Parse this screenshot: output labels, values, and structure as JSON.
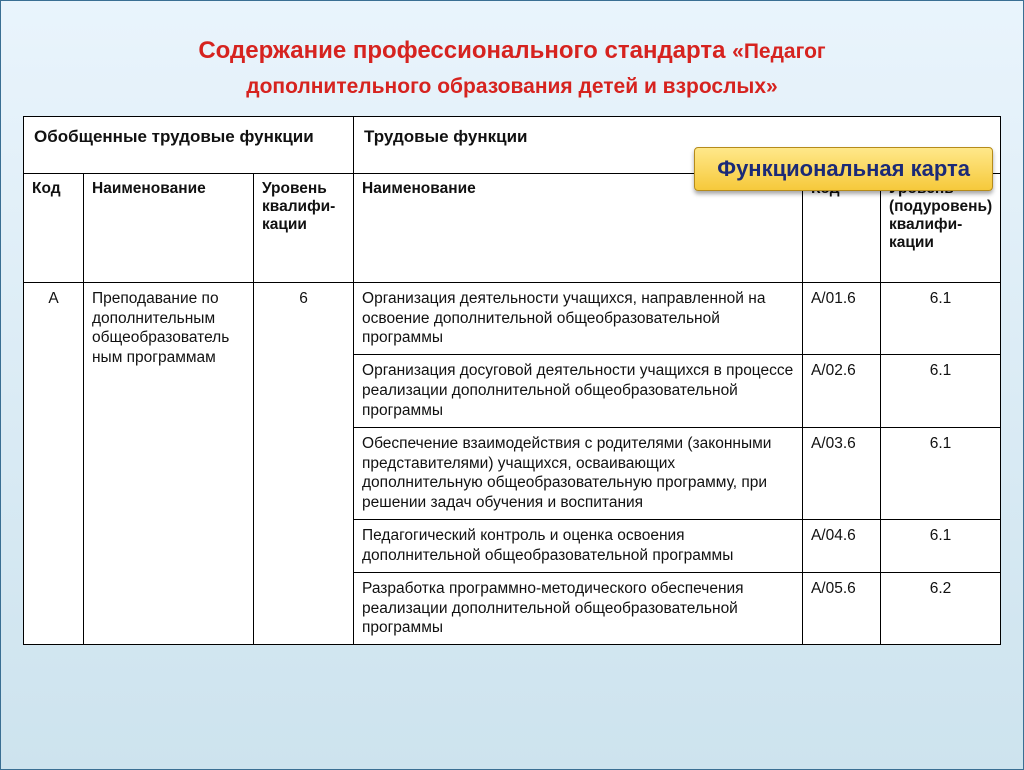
{
  "colors": {
    "page_bg_top": "#e9f4fc",
    "page_bg_bottom": "#cde3ee",
    "canvas_border_blue": "#3a6f93",
    "title_red": "#d6231f",
    "badge_bg_top": "#ffe88a",
    "badge_bg_bottom": "#f6c93b",
    "badge_border": "#b58b1b",
    "badge_text": "#1b2a77",
    "table_border": "#000000",
    "cell_bg": "#ffffff",
    "text": "#111111"
  },
  "title": {
    "line1_a": "Содержание профессионального стандарта ",
    "line1_b": "«Педагог",
    "line2": "дополнительного образования детей и взрослых»",
    "font_size_main": 24,
    "font_size_sub": 21
  },
  "badge": {
    "label": "Функциональная карта",
    "font_size": 22
  },
  "table": {
    "group_headers": {
      "left": "Обобщенные трудовые функции",
      "right": "Трудовые функции"
    },
    "sub_headers": {
      "code": "Код",
      "name": "Наименование",
      "level": "Уровень квалифи-кации",
      "name2": "Наименование",
      "code2": "Код",
      "level2": "Уровень (подуровень) квалифи-кации"
    },
    "group": {
      "code": "A",
      "name": "Преподавание по дополнительным общеобразователь ным программам",
      "level": "6"
    },
    "rows": [
      {
        "name": "Организация деятельности учащихся, направленной на освоение дополнительной общеобразовательной программы",
        "code": "A/01.6",
        "level": "6.1"
      },
      {
        "name": "Организация досуговой деятельности учащихся в процессе реализации дополнительной общеобразовательной программы",
        "code": "A/02.6",
        "level": "6.1"
      },
      {
        "name": "Обеспечение взаимодействия с родителями (законными представителями) учащихся, осваивающих дополнительную общеобразовательную программу, при решении задач обучения и воспитания",
        "code": "A/03.6",
        "level": "6.1"
      },
      {
        "name": "Педагогический контроль и оценка освоения дополнительной общеобразовательной программы",
        "code": "A/04.6",
        "level": "6.1"
      },
      {
        "name": "Разработка программно-методического обеспечения реализации дополнительной общеобразовательной программы",
        "code": "A/05.6",
        "level": "6.2"
      }
    ]
  }
}
